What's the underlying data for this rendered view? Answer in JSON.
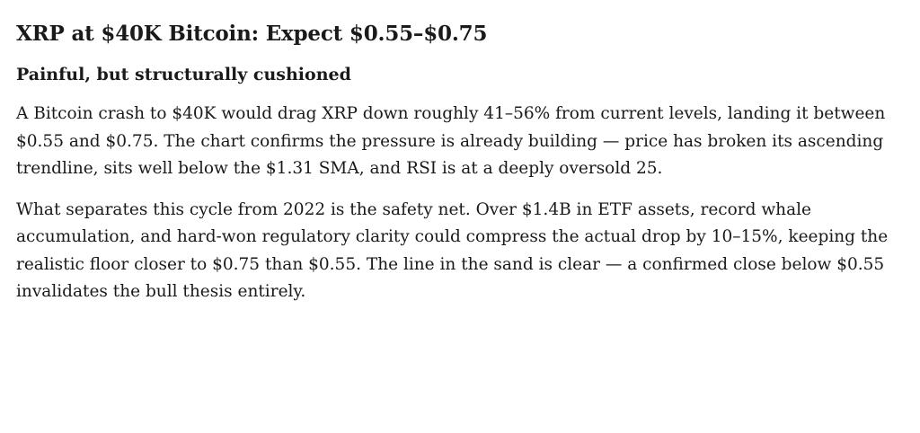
{
  "article": {
    "title": "XRP at $40K Bitcoin: Expect $0.55–$0.75",
    "subtitle": "Painful, but structurally cushioned",
    "paragraphs": [
      "A Bitcoin crash to $40K would drag XRP down roughly 41–56% from current levels, landing it between $0.55 and $0.75. The chart confirms the pressure is already building — price has broken its ascending trendline, sits well below the $1.31 SMA, and RSI is at a deeply oversold 25.",
      "What separates this cycle from 2022 is the safety net. Over $1.4B in ETF assets, record whale accumulation, and hard-won regulatory clarity could compress the actual drop by 10–15%, keeping the realistic floor closer to $0.75 than $0.55. The line in the sand is clear — a confirmed close below $0.55 invalidates the bull thesis entirely."
    ]
  }
}
